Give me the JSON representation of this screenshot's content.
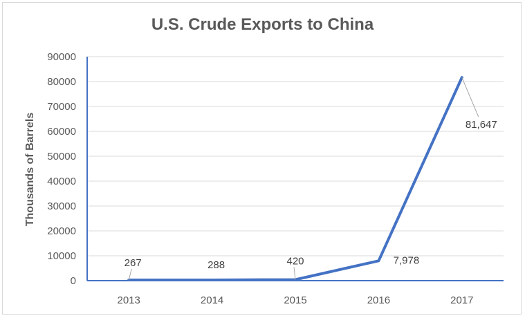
{
  "chart_data": {
    "type": "line",
    "title": "U.S. Crude Exports to China",
    "xlabel": "",
    "ylabel": "Thousands of Barrels",
    "categories": [
      "2013",
      "2014",
      "2015",
      "2016",
      "2017"
    ],
    "series": [
      {
        "values": [
          267,
          288,
          420,
          7978,
          81647
        ],
        "color": "#4472c4"
      }
    ],
    "data_labels": [
      "267",
      "288",
      "420",
      "7,978",
      "81,647"
    ],
    "ylim": [
      0,
      90000
    ],
    "yticks": [
      0,
      10000,
      20000,
      30000,
      40000,
      50000,
      60000,
      70000,
      80000,
      90000
    ],
    "ytick_labels": [
      "0",
      "10000",
      "20000",
      "30000",
      "40000",
      "50000",
      "60000",
      "70000",
      "80000",
      "90000"
    ],
    "grid": true,
    "legend": "none",
    "colors": {
      "line": "#4472c4",
      "grid": "#d9d9d9",
      "axis": "#4472c4",
      "text": "#595959"
    }
  }
}
